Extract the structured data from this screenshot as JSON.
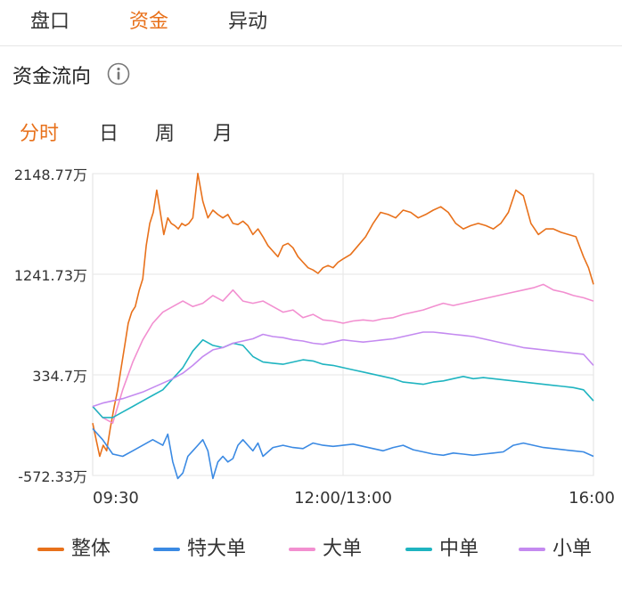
{
  "tabs": [
    {
      "label": "盘口",
      "active": false
    },
    {
      "label": "资金",
      "active": true
    },
    {
      "label": "异动",
      "active": false
    }
  ],
  "section": {
    "title": "资金流向",
    "info_icon": "info-circle-icon"
  },
  "period_tabs": [
    {
      "label": "分时",
      "active": true
    },
    {
      "label": "日",
      "active": false
    },
    {
      "label": "周",
      "active": false
    },
    {
      "label": "月",
      "active": false
    }
  ],
  "colors": {
    "accent": "#e8711b",
    "整体": "#e8711b",
    "特大单": "#3b8ae3",
    "大单": "#f28fd0",
    "中单": "#1fb4c0",
    "小单": "#c48af0"
  },
  "chart_data": {
    "type": "line",
    "y_ticks": [
      "2148.77万",
      "1241.73万",
      "334.7万",
      "-572.33万"
    ],
    "y_tick_values": [
      2148.77,
      1241.73,
      334.7,
      -572.33
    ],
    "ylim": [
      -572.33,
      2148.77
    ],
    "x_ticks": [
      "09:30",
      "12:00/13:00",
      "16:00"
    ],
    "x_tick_positions": [
      0,
      0.5,
      1.0
    ],
    "xlim": [
      0,
      1
    ],
    "grid": true,
    "legend_position": "bottom",
    "series": [
      {
        "name": "整体",
        "color": "#e8711b",
        "x": [
          0.0,
          0.007,
          0.014,
          0.021,
          0.028,
          0.035,
          0.043,
          0.05,
          0.057,
          0.064,
          0.071,
          0.078,
          0.085,
          0.093,
          0.1,
          0.107,
          0.114,
          0.121,
          0.128,
          0.135,
          0.142,
          0.15,
          0.157,
          0.164,
          0.171,
          0.178,
          0.185,
          0.192,
          0.2,
          0.21,
          0.22,
          0.23,
          0.24,
          0.25,
          0.26,
          0.27,
          0.28,
          0.29,
          0.3,
          0.31,
          0.32,
          0.33,
          0.34,
          0.35,
          0.36,
          0.37,
          0.38,
          0.39,
          0.4,
          0.41,
          0.42,
          0.43,
          0.44,
          0.45,
          0.46,
          0.47,
          0.48,
          0.49,
          0.5,
          0.515,
          0.53,
          0.545,
          0.56,
          0.575,
          0.59,
          0.605,
          0.62,
          0.635,
          0.65,
          0.665,
          0.68,
          0.695,
          0.71,
          0.725,
          0.74,
          0.755,
          0.77,
          0.785,
          0.8,
          0.815,
          0.83,
          0.845,
          0.86,
          0.875,
          0.89,
          0.905,
          0.92,
          0.935,
          0.95,
          0.965,
          0.98,
          0.99,
          1.0
        ],
        "values": [
          -100,
          -250,
          -400,
          -300,
          -350,
          -150,
          50,
          200,
          400,
          600,
          800,
          900,
          950,
          1100,
          1200,
          1500,
          1700,
          1800,
          2000,
          1800,
          1600,
          1750,
          1700,
          1680,
          1650,
          1700,
          1680,
          1700,
          1750,
          2150,
          1900,
          1750,
          1820,
          1780,
          1750,
          1780,
          1700,
          1690,
          1720,
          1680,
          1600,
          1650,
          1580,
          1500,
          1450,
          1400,
          1500,
          1520,
          1480,
          1400,
          1350,
          1300,
          1280,
          1250,
          1300,
          1320,
          1300,
          1350,
          1380,
          1420,
          1500,
          1580,
          1700,
          1800,
          1780,
          1750,
          1820,
          1800,
          1750,
          1780,
          1820,
          1850,
          1800,
          1700,
          1650,
          1680,
          1700,
          1680,
          1650,
          1700,
          1800,
          2000,
          1950,
          1700,
          1600,
          1650,
          1650,
          1620,
          1600,
          1580,
          1400,
          1300,
          1150
        ]
      },
      {
        "name": "特大单",
        "color": "#3b8ae3",
        "x": [
          0.0,
          0.02,
          0.04,
          0.06,
          0.08,
          0.1,
          0.12,
          0.14,
          0.15,
          0.16,
          0.17,
          0.18,
          0.19,
          0.2,
          0.21,
          0.22,
          0.23,
          0.24,
          0.25,
          0.26,
          0.27,
          0.28,
          0.29,
          0.3,
          0.31,
          0.32,
          0.33,
          0.34,
          0.36,
          0.38,
          0.4,
          0.42,
          0.44,
          0.46,
          0.48,
          0.5,
          0.52,
          0.54,
          0.56,
          0.58,
          0.6,
          0.62,
          0.64,
          0.66,
          0.68,
          0.7,
          0.72,
          0.74,
          0.76,
          0.78,
          0.8,
          0.82,
          0.84,
          0.86,
          0.88,
          0.9,
          0.92,
          0.94,
          0.96,
          0.98,
          1.0
        ],
        "values": [
          -150,
          -250,
          -380,
          -400,
          -350,
          -300,
          -250,
          -300,
          -200,
          -450,
          -600,
          -550,
          -400,
          -350,
          -300,
          -250,
          -350,
          -600,
          -450,
          -400,
          -450,
          -420,
          -300,
          -250,
          -300,
          -350,
          -280,
          -400,
          -320,
          -300,
          -320,
          -330,
          -280,
          -300,
          -310,
          -300,
          -290,
          -310,
          -330,
          -350,
          -320,
          -300,
          -340,
          -360,
          -380,
          -390,
          -370,
          -380,
          -390,
          -380,
          -370,
          -360,
          -300,
          -280,
          -300,
          -320,
          -330,
          -340,
          -350,
          -360,
          -400
        ]
      },
      {
        "name": "大单",
        "color": "#f28fd0",
        "x": [
          0.0,
          0.02,
          0.04,
          0.06,
          0.08,
          0.1,
          0.12,
          0.14,
          0.16,
          0.18,
          0.2,
          0.22,
          0.24,
          0.26,
          0.28,
          0.3,
          0.32,
          0.34,
          0.36,
          0.38,
          0.4,
          0.42,
          0.44,
          0.46,
          0.48,
          0.5,
          0.52,
          0.54,
          0.56,
          0.58,
          0.6,
          0.62,
          0.64,
          0.66,
          0.68,
          0.7,
          0.72,
          0.74,
          0.76,
          0.78,
          0.8,
          0.82,
          0.84,
          0.86,
          0.88,
          0.9,
          0.92,
          0.94,
          0.96,
          0.98,
          1.0
        ],
        "values": [
          50,
          -50,
          -100,
          200,
          450,
          650,
          800,
          900,
          950,
          1000,
          950,
          980,
          1050,
          1000,
          1100,
          1000,
          980,
          1000,
          950,
          900,
          920,
          850,
          880,
          830,
          820,
          800,
          820,
          830,
          820,
          840,
          850,
          880,
          900,
          920,
          950,
          980,
          960,
          980,
          1000,
          1020,
          1040,
          1060,
          1080,
          1100,
          1120,
          1150,
          1100,
          1080,
          1050,
          1030,
          1000
        ]
      },
      {
        "name": "中单",
        "color": "#1fb4c0",
        "x": [
          0.0,
          0.02,
          0.04,
          0.06,
          0.08,
          0.1,
          0.12,
          0.14,
          0.16,
          0.18,
          0.2,
          0.22,
          0.24,
          0.26,
          0.28,
          0.3,
          0.32,
          0.34,
          0.36,
          0.38,
          0.4,
          0.42,
          0.44,
          0.46,
          0.48,
          0.5,
          0.52,
          0.54,
          0.56,
          0.58,
          0.6,
          0.62,
          0.64,
          0.66,
          0.68,
          0.7,
          0.72,
          0.74,
          0.76,
          0.78,
          0.8,
          0.82,
          0.84,
          0.86,
          0.88,
          0.9,
          0.92,
          0.94,
          0.96,
          0.98,
          1.0
        ],
        "values": [
          50,
          -50,
          -50,
          0,
          50,
          100,
          150,
          200,
          300,
          400,
          550,
          650,
          600,
          580,
          620,
          600,
          500,
          450,
          440,
          430,
          450,
          470,
          460,
          430,
          420,
          400,
          380,
          360,
          340,
          320,
          300,
          270,
          260,
          250,
          270,
          280,
          300,
          320,
          300,
          310,
          300,
          290,
          280,
          270,
          260,
          250,
          240,
          230,
          220,
          200,
          100
        ]
      },
      {
        "name": "小单",
        "color": "#c48af0",
        "x": [
          0.0,
          0.02,
          0.04,
          0.06,
          0.08,
          0.1,
          0.12,
          0.14,
          0.16,
          0.18,
          0.2,
          0.22,
          0.24,
          0.26,
          0.28,
          0.3,
          0.32,
          0.34,
          0.36,
          0.38,
          0.4,
          0.42,
          0.44,
          0.46,
          0.48,
          0.5,
          0.52,
          0.54,
          0.56,
          0.58,
          0.6,
          0.62,
          0.64,
          0.66,
          0.68,
          0.7,
          0.72,
          0.74,
          0.76,
          0.78,
          0.8,
          0.82,
          0.84,
          0.86,
          0.88,
          0.9,
          0.92,
          0.94,
          0.96,
          0.98,
          1.0
        ],
        "values": [
          50,
          80,
          100,
          120,
          150,
          180,
          220,
          260,
          300,
          350,
          420,
          500,
          560,
          580,
          620,
          640,
          660,
          700,
          680,
          670,
          650,
          640,
          620,
          610,
          630,
          650,
          640,
          630,
          640,
          650,
          660,
          680,
          700,
          720,
          720,
          710,
          700,
          690,
          680,
          660,
          640,
          620,
          600,
          580,
          570,
          560,
          550,
          540,
          530,
          520,
          420
        ]
      }
    ]
  }
}
